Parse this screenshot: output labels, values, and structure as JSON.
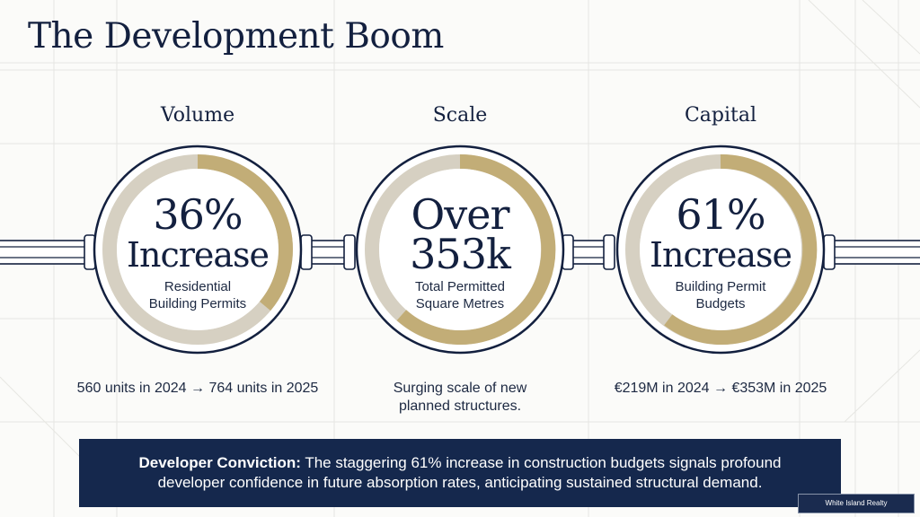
{
  "title": "The Development Boom",
  "colors": {
    "navy": "#13203f",
    "gold": "#c2ad77",
    "light_track": "#d6d0c2",
    "banner": "#15284d"
  },
  "metrics": [
    {
      "label": "Volume",
      "headline_line1": "36%",
      "headline_line2": "Increase",
      "sub_line1": "Residential",
      "sub_line2": "Building Permits",
      "footnote_line1": "560 units in 2024 → 764 units in 2025",
      "footnote_line2": ""
    },
    {
      "label": "Scale",
      "headline_line1": "Over",
      "headline_line2": "353k",
      "sub_line1": "Total Permitted",
      "sub_line2": "Square Metres",
      "footnote_line1": "Surging scale of new",
      "footnote_line2": "planned structures."
    },
    {
      "label": "Capital",
      "headline_line1": "61%",
      "headline_line2": "Increase",
      "sub_line1": "Building Permit",
      "sub_line2": "Budgets",
      "footnote_line1": "€219M in 2024 → €353M in 2025",
      "footnote_line2": ""
    }
  ],
  "banner": {
    "lead": "Developer Conviction:",
    "text": " The staggering 61% increase in construction budgets signals profound developer confidence in future absorption rates, anticipating sustained structural demand."
  },
  "badge": "White Island Realty"
}
